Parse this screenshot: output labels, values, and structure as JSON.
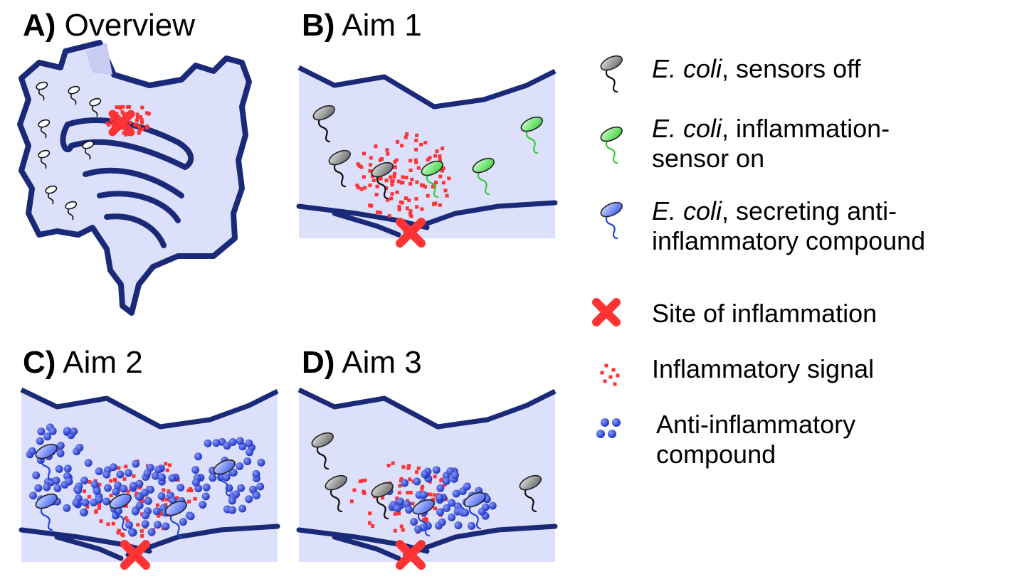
{
  "panels": {
    "a": {
      "letter": "A)",
      "title": "Overview"
    },
    "b": {
      "letter": "B)",
      "title": "Aim 1"
    },
    "c": {
      "letter": "C)",
      "title": "Aim 2"
    },
    "d": {
      "letter": "D)",
      "title": "Aim 3"
    }
  },
  "legend": {
    "sensors_off": {
      "italic": "E. coli",
      "rest": ", sensors off"
    },
    "sensor_on": {
      "italic": "E. coli",
      "rest": ", inflammation-",
      "line2": "sensor on"
    },
    "secreting": {
      "italic": "E. coli",
      "rest": ", secreting anti-",
      "line2": "inflammatory compound"
    },
    "site": {
      "text": "Site of inflammation"
    },
    "signal": {
      "text": "Inflammatory signal"
    },
    "compound": {
      "line1": "Anti-inflammatory",
      "line2": "compound"
    }
  },
  "colors": {
    "tissue_fill": "#dde0fb",
    "tissue_stroke": "#1a2a78",
    "inflammation": "#ff3333",
    "compound": "#2244dd",
    "bacterium_off": "#888888",
    "bacterium_sensor": "#44dd44",
    "bacterium_secreting": "#4466ee"
  }
}
